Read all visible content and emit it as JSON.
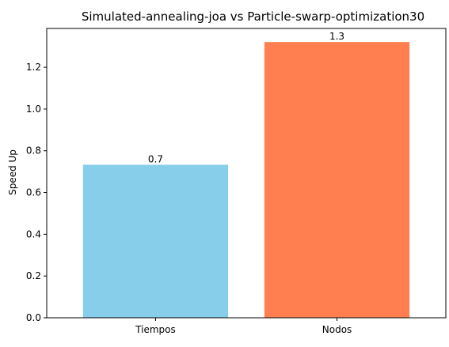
{
  "chart_data": {
    "type": "bar",
    "title": "Simulated-annealing-joa vs Particle-swarp-optimization30",
    "xlabel": "",
    "ylabel": "Speed Up",
    "categories": [
      "Tiempos",
      "Nodos"
    ],
    "values": [
      0.733,
      1.321
    ],
    "data_labels": [
      "0.7",
      "1.3"
    ],
    "bar_colors": [
      "#87CEEB",
      "#FF7F50"
    ],
    "ylim": [
      0,
      1.386
    ],
    "yticks": [
      0.0,
      0.2,
      0.4,
      0.6,
      0.8,
      1.0,
      1.2
    ],
    "ytick_labels": [
      "0.0",
      "0.2",
      "0.4",
      "0.6",
      "0.8",
      "1.0",
      "1.2"
    ],
    "grid": false,
    "legend": "none"
  }
}
